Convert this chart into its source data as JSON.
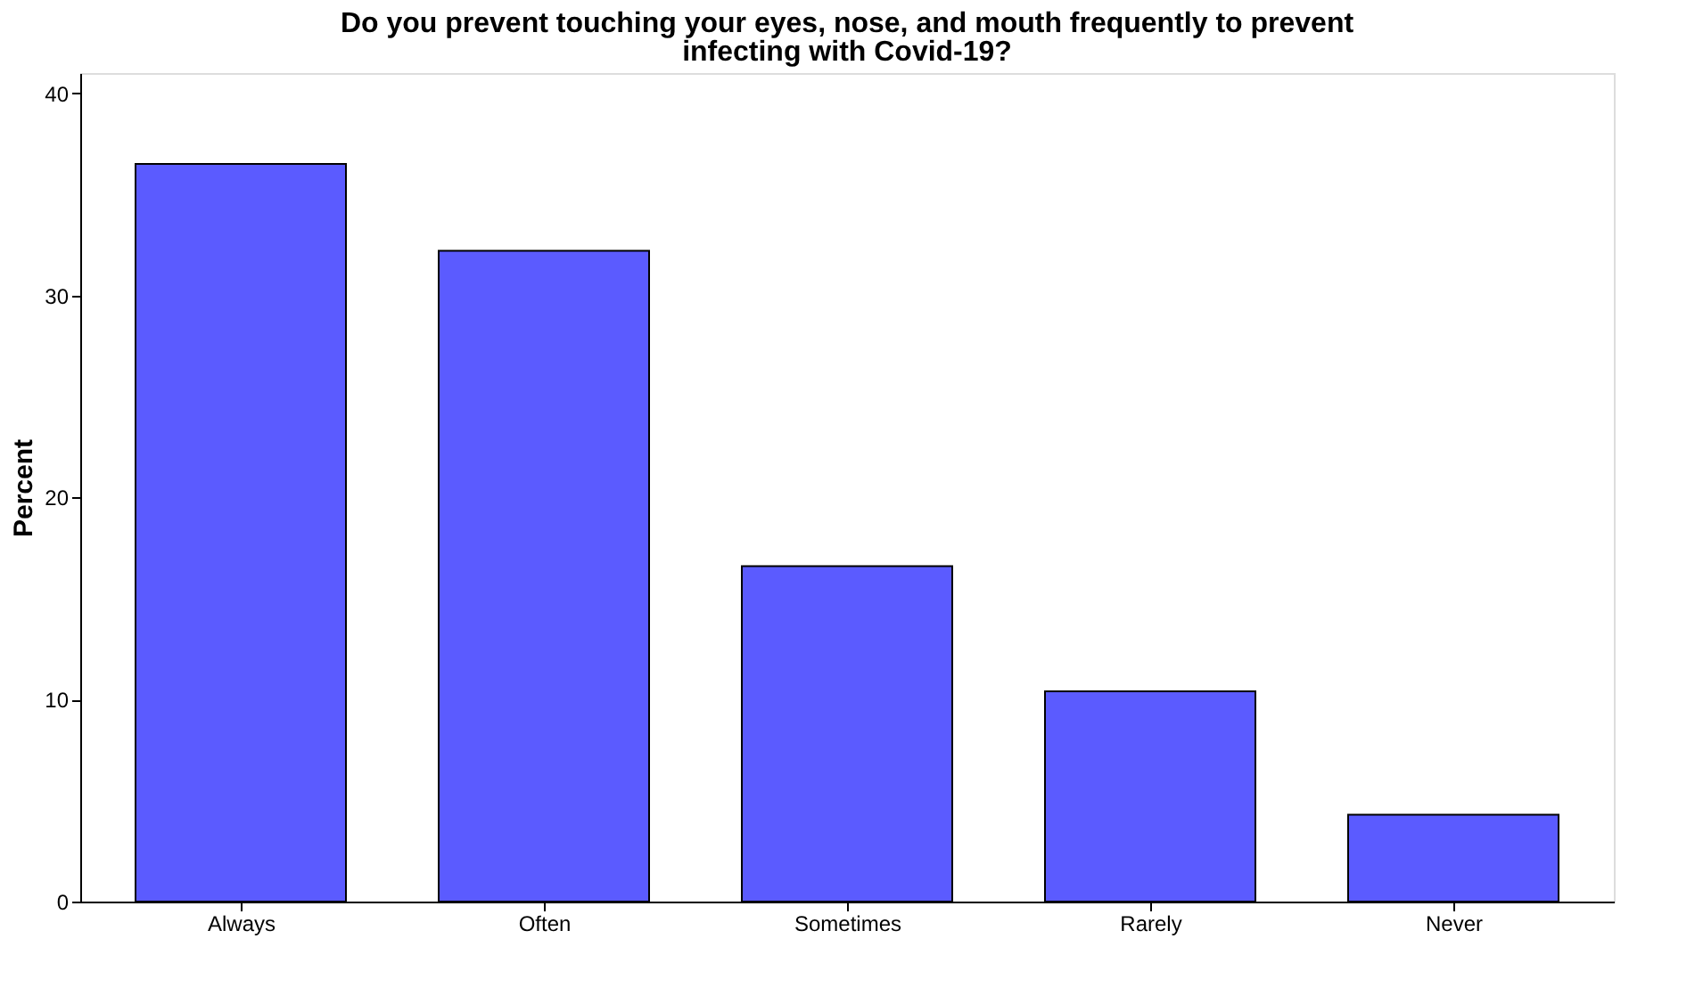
{
  "chart_data": {
    "type": "bar",
    "title": [
      "Do you prevent touching your eyes, nose, and mouth frequently to prevent",
      "infecting with Covid-19?"
    ],
    "ylabel": "Percent",
    "categories": [
      "Always",
      "Often",
      "Sometimes",
      "Rarely",
      "Never"
    ],
    "values": [
      36.5,
      32.2,
      16.6,
      10.4,
      4.3
    ],
    "color": "#5b5bff",
    "ylim": [
      0,
      41
    ],
    "yticks": [
      0,
      10,
      20,
      30,
      40
    ],
    "grid": false
  }
}
